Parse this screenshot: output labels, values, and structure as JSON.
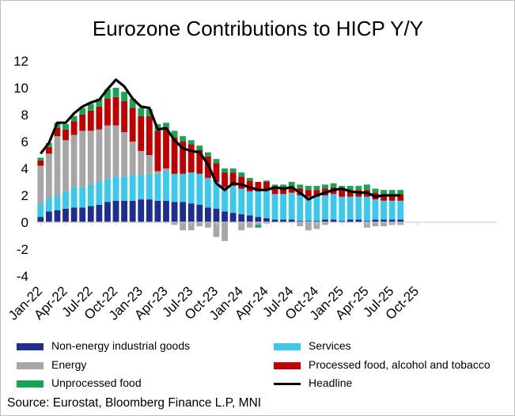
{
  "chart_data": {
    "type": "bar",
    "stacked": true,
    "title": "Eurozone Contributions to HICP Y/Y",
    "ylim": [
      -4,
      12
    ],
    "yticks": [
      -4,
      -2,
      0,
      2,
      4,
      6,
      8,
      10,
      12
    ],
    "xtick_labels": [
      "Jan-22",
      "Apr-22",
      "Jul-22",
      "Oct-22",
      "Jan-23",
      "Apr-23",
      "Jul-23",
      "Oct-23",
      "Jan-24",
      "Apr-24",
      "Jul-24",
      "Oct-24",
      "Jan-25",
      "Apr-25",
      "Jul-25",
      "Oct-25"
    ],
    "categories": [
      "Jan-22",
      "Feb-22",
      "Mar-22",
      "Apr-22",
      "May-22",
      "Jun-22",
      "Jul-22",
      "Aug-22",
      "Sep-22",
      "Oct-22",
      "Nov-22",
      "Dec-22",
      "Jan-23",
      "Feb-23",
      "Mar-23",
      "Apr-23",
      "May-23",
      "Jun-23",
      "Jul-23",
      "Aug-23",
      "Sep-23",
      "Oct-23",
      "Nov-23",
      "Dec-23",
      "Jan-24",
      "Feb-24",
      "Mar-24",
      "Apr-24",
      "May-24",
      "Jun-24",
      "Jul-24",
      "Aug-24",
      "Sep-24",
      "Oct-24",
      "Nov-24",
      "Dec-24",
      "Jan-25",
      "Feb-25",
      "Mar-25",
      "Apr-25",
      "May-25",
      "Jun-25",
      "Jul-25",
      "Aug-25"
    ],
    "series": [
      {
        "name": "Non-energy industrial goods",
        "color": "#1f2d8f",
        "values": [
          0.4,
          0.8,
          0.9,
          1.0,
          1.1,
          1.1,
          1.2,
          1.3,
          1.5,
          1.6,
          1.6,
          1.6,
          1.7,
          1.7,
          1.6,
          1.6,
          1.5,
          1.5,
          1.4,
          1.3,
          1.1,
          1.0,
          0.8,
          0.7,
          0.6,
          0.5,
          0.4,
          0.3,
          0.2,
          0.2,
          0.2,
          0.1,
          0.1,
          0.1,
          0.2,
          0.2,
          0.1,
          0.2,
          0.2,
          0.1,
          0.2,
          0.2,
          0.2,
          0.2
        ]
      },
      {
        "name": "Services",
        "color": "#3bc8ea",
        "values": [
          1.0,
          1.0,
          1.1,
          1.3,
          1.5,
          1.5,
          1.6,
          1.7,
          1.7,
          1.8,
          1.8,
          1.9,
          1.8,
          1.9,
          2.0,
          2.2,
          2.1,
          2.1,
          2.3,
          2.3,
          2.2,
          2.0,
          1.8,
          1.9,
          1.9,
          1.8,
          1.9,
          2.1,
          1.9,
          1.9,
          1.9,
          1.9,
          1.8,
          1.8,
          1.8,
          1.9,
          1.8,
          1.7,
          1.7,
          1.8,
          1.5,
          1.4,
          1.4,
          1.4
        ]
      },
      {
        "name": "Energy",
        "color": "#a6a6a6",
        "values": [
          2.8,
          3.3,
          4.4,
          3.8,
          3.9,
          4.2,
          4.0,
          3.9,
          4.0,
          3.8,
          3.3,
          2.5,
          1.8,
          1.4,
          0.2,
          0.2,
          -0.2,
          -0.6,
          -0.6,
          -0.3,
          -0.4,
          -1.1,
          -1.4,
          0.1,
          -0.6,
          -0.4,
          -0.2,
          -0.1,
          0.0,
          0.0,
          0.1,
          -0.3,
          -0.6,
          -0.5,
          -0.2,
          0.0,
          0.0,
          0.0,
          0.0,
          -0.4,
          -0.3,
          -0.3,
          -0.2,
          -0.2
        ]
      },
      {
        "name": "Processed food, alcohol and tobacco",
        "color": "#c00000",
        "values": [
          0.4,
          0.5,
          0.6,
          0.8,
          1.0,
          1.2,
          1.5,
          1.7,
          2.0,
          2.1,
          2.3,
          2.5,
          2.6,
          2.9,
          3.0,
          2.9,
          2.7,
          2.4,
          2.1,
          1.8,
          1.6,
          1.4,
          1.1,
          1.0,
          0.9,
          0.8,
          0.7,
          0.6,
          0.5,
          0.5,
          0.5,
          0.5,
          0.5,
          0.5,
          0.5,
          0.5,
          0.5,
          0.5,
          0.5,
          0.5,
          0.5,
          0.5,
          0.5,
          0.5
        ]
      },
      {
        "name": "Unprocessed food",
        "color": "#17a552",
        "values": [
          0.2,
          0.3,
          0.4,
          0.4,
          0.4,
          0.5,
          0.5,
          0.6,
          0.7,
          0.7,
          0.7,
          0.7,
          0.6,
          0.5,
          0.5,
          0.5,
          0.5,
          0.4,
          0.3,
          0.3,
          0.3,
          0.3,
          0.3,
          0.3,
          0.3,
          0.2,
          -0.2,
          0.1,
          0.2,
          0.2,
          0.3,
          0.3,
          0.3,
          0.3,
          0.3,
          0.3,
          0.3,
          0.3,
          0.3,
          0.4,
          0.3,
          0.3,
          0.3,
          0.3
        ]
      }
    ],
    "line": {
      "name": "Headline",
      "color": "#000000",
      "values": [
        5.1,
        5.9,
        7.4,
        7.4,
        8.1,
        8.6,
        8.9,
        9.1,
        9.9,
        10.6,
        10.1,
        9.2,
        8.6,
        8.5,
        6.9,
        7.0,
        6.1,
        5.5,
        5.3,
        5.2,
        4.3,
        2.9,
        2.4,
        2.9,
        2.8,
        2.6,
        2.4,
        2.4,
        2.6,
        2.5,
        2.6,
        2.2,
        1.7,
        2.0,
        2.2,
        2.4,
        2.5,
        2.3,
        2.2,
        2.2,
        1.9,
        2.0,
        2.0,
        2.0
      ]
    },
    "legend": {
      "position": "bottom"
    }
  },
  "source": "Source: Eurostat, Bloomberg Finance L.P, MNI"
}
